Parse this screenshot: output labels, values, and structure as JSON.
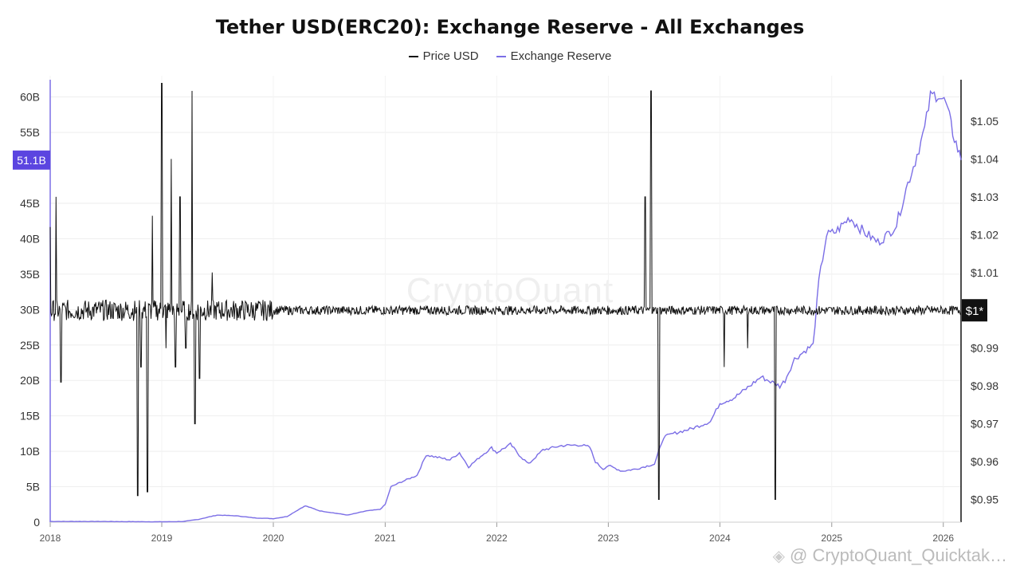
{
  "header": {
    "title": "Tether USD(ERC20): Exchange Reserve - All Exchanges"
  },
  "legend": [
    {
      "name": "Price USD",
      "color": "#111111"
    },
    {
      "name": "Exchange Reserve",
      "color": "#7b6ee6"
    }
  ],
  "watermark": {
    "center_text": "CryptoQuant",
    "footer_text": "@ CryptoQuant_Quicktak…"
  },
  "chart_data": {
    "type": "line",
    "title": "Tether USD(ERC20): Exchange Reserve - All Exchanges",
    "x_axis": {
      "type": "date",
      "range": [
        "2018-01-01",
        "2026-02-28"
      ],
      "tick_labels": [
        "2018",
        "2019",
        "2020",
        "2021",
        "2022",
        "2023",
        "2024",
        "2025",
        "2026"
      ]
    },
    "y_axis_left": {
      "label": "",
      "range": [
        0,
        63
      ],
      "tick_values": [
        0,
        5,
        10,
        15,
        20,
        25,
        30,
        35,
        40,
        45,
        55,
        60
      ],
      "tick_labels": [
        "0",
        "5B",
        "10B",
        "15B",
        "20B",
        "25B",
        "30B",
        "35B",
        "40B",
        "45B",
        "55B",
        "60B"
      ],
      "current_value_label": "51.1B",
      "current_value": 51.1
    },
    "y_axis_right": {
      "label": "",
      "range": [
        0.944,
        1.062
      ],
      "tick_values": [
        0.95,
        0.96,
        0.97,
        0.98,
        0.99,
        1.01,
        1.02,
        1.03,
        1.04,
        1.05
      ],
      "tick_labels": [
        "$0.95",
        "$0.96",
        "$0.97",
        "$0.98",
        "$0.99",
        "$1.01",
        "$1.02",
        "$1.03",
        "$1.04",
        "$1.05"
      ],
      "current_value_label": "$1*",
      "current_value": 1.0
    },
    "grid": true,
    "legend_position": "top-center",
    "series": [
      {
        "name": "Exchange Reserve",
        "axis": "left",
        "unit": "B",
        "color": "#7b6ee6",
        "points": [
          [
            "2018-01-01",
            0.1
          ],
          [
            "2018-06-01",
            0.1
          ],
          [
            "2019-01-01",
            0.05
          ],
          [
            "2019-03-15",
            0.1
          ],
          [
            "2019-05-01",
            0.4
          ],
          [
            "2019-07-01",
            1.0
          ],
          [
            "2019-09-01",
            0.9
          ],
          [
            "2019-11-01",
            0.6
          ],
          [
            "2020-01-01",
            0.5
          ],
          [
            "2020-02-15",
            0.8
          ],
          [
            "2020-04-01",
            2.0
          ],
          [
            "2020-04-15",
            2.3
          ],
          [
            "2020-06-01",
            1.6
          ],
          [
            "2020-09-01",
            1.0
          ],
          [
            "2020-11-01",
            1.6
          ],
          [
            "2020-12-15",
            1.8
          ],
          [
            "2021-01-01",
            2.5
          ],
          [
            "2021-01-20",
            5.0
          ],
          [
            "2021-03-01",
            5.8
          ],
          [
            "2021-04-15",
            6.6
          ],
          [
            "2021-05-15",
            9.5
          ],
          [
            "2021-06-15",
            9.2
          ],
          [
            "2021-08-01",
            8.8
          ],
          [
            "2021-09-01",
            9.8
          ],
          [
            "2021-10-01",
            7.8
          ],
          [
            "2021-11-15",
            9.5
          ],
          [
            "2021-12-15",
            10.5
          ],
          [
            "2022-01-01",
            9.8
          ],
          [
            "2022-02-15",
            11.0
          ],
          [
            "2022-03-15",
            9.5
          ],
          [
            "2022-04-15",
            8.2
          ],
          [
            "2022-06-01",
            10.2
          ],
          [
            "2022-08-01",
            10.8
          ],
          [
            "2022-10-01",
            10.9
          ],
          [
            "2022-11-01",
            10.6
          ],
          [
            "2022-11-20",
            8.5
          ],
          [
            "2022-12-15",
            7.5
          ],
          [
            "2023-01-01",
            8.0
          ],
          [
            "2023-02-15",
            7.2
          ],
          [
            "2023-04-01",
            7.5
          ],
          [
            "2023-06-01",
            8.2
          ],
          [
            "2023-07-01",
            12.0
          ],
          [
            "2023-08-01",
            12.5
          ],
          [
            "2023-10-01",
            13.2
          ],
          [
            "2023-12-01",
            14.2
          ],
          [
            "2024-01-01",
            16.8
          ],
          [
            "2024-02-15",
            17.5
          ],
          [
            "2024-04-01",
            19.0
          ],
          [
            "2024-05-15",
            20.5
          ],
          [
            "2024-07-15",
            19.2
          ],
          [
            "2024-08-01",
            20.0
          ],
          [
            "2024-09-01",
            23.0
          ],
          [
            "2024-10-15",
            24.5
          ],
          [
            "2024-11-01",
            25.0
          ],
          [
            "2024-11-20",
            34.0
          ],
          [
            "2024-12-15",
            40.5
          ],
          [
            "2025-01-15",
            41.0
          ],
          [
            "2025-03-01",
            43.0
          ],
          [
            "2025-04-15",
            41.0
          ],
          [
            "2025-06-01",
            39.5
          ],
          [
            "2025-07-01",
            40.5
          ],
          [
            "2025-08-01",
            42.0
          ],
          [
            "2025-09-01",
            47.0
          ],
          [
            "2025-10-01",
            51.0
          ],
          [
            "2025-11-01",
            55.5
          ],
          [
            "2025-11-20",
            60.0
          ],
          [
            "2025-12-15",
            60.5
          ],
          [
            "2026-01-10",
            59.0
          ],
          [
            "2026-02-01",
            55.0
          ],
          [
            "2026-02-28",
            51.1
          ]
        ]
      },
      {
        "name": "Price USD",
        "axis": "right",
        "unit": "USD",
        "color": "#111111",
        "baseline": 1.0,
        "spikes": [
          [
            "2018-01-01",
            1.022
          ],
          [
            "2018-01-20",
            1.03
          ],
          [
            "2018-02-05",
            0.981
          ],
          [
            "2018-10-15",
            0.951
          ],
          [
            "2018-10-25",
            0.985
          ],
          [
            "2018-11-15",
            0.952
          ],
          [
            "2018-12-01",
            1.025
          ],
          [
            "2019-01-01",
            1.06
          ],
          [
            "2019-01-15",
            0.99
          ],
          [
            "2019-02-01",
            1.04
          ],
          [
            "2019-02-15",
            0.985
          ],
          [
            "2019-03-01",
            1.03
          ],
          [
            "2019-03-20",
            0.99
          ],
          [
            "2019-04-10",
            1.058
          ],
          [
            "2019-04-20",
            0.97
          ],
          [
            "2019-05-05",
            0.982
          ],
          [
            "2019-06-15",
            1.01
          ],
          [
            "2023-05-01",
            1.03
          ],
          [
            "2023-05-20",
            1.058
          ],
          [
            "2023-06-15",
            0.95
          ],
          [
            "2024-01-15",
            0.985
          ],
          [
            "2024-04-01",
            0.99
          ],
          [
            "2024-07-01",
            0.95
          ]
        ]
      }
    ]
  }
}
